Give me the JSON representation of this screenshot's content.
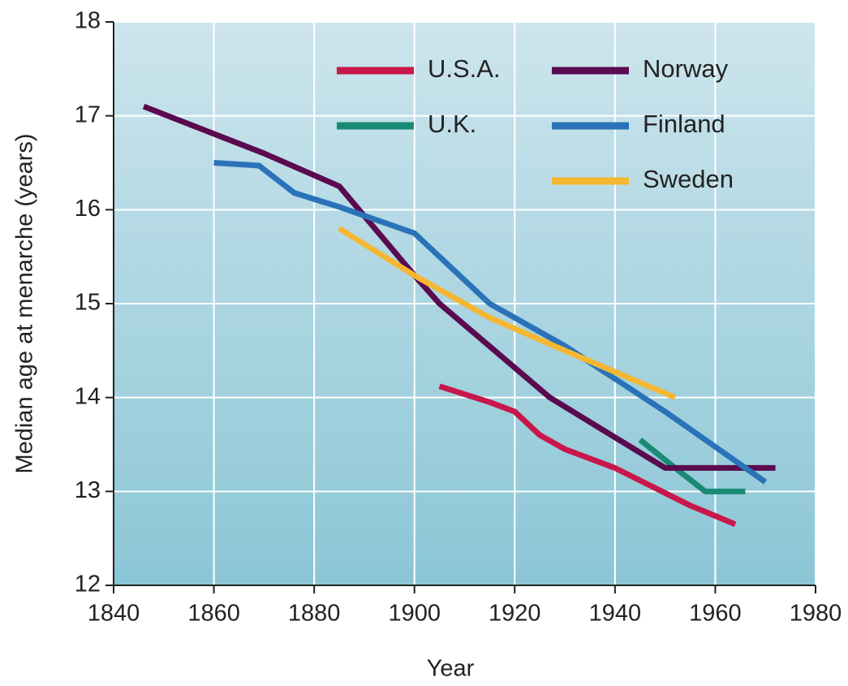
{
  "chart_data": {
    "type": "line",
    "xlabel": "Year",
    "ylabel": "Median age at menarche (years)",
    "xlim": [
      1840,
      1980
    ],
    "xticks": [
      1840,
      1860,
      1880,
      1900,
      1920,
      1940,
      1960,
      1980
    ],
    "ylim": [
      12,
      18
    ],
    "yticks": [
      12,
      13,
      14,
      15,
      16,
      17,
      18
    ],
    "grid": true,
    "legend": "upper right",
    "series": [
      {
        "name": "U.S.A.",
        "color": "#c8174a",
        "x": [
          1905,
          1915,
          1920,
          1925,
          1930,
          1940,
          1955,
          1964
        ],
        "values": [
          14.12,
          13.95,
          13.85,
          13.6,
          13.45,
          13.25,
          12.85,
          12.65
        ]
      },
      {
        "name": "U.K.",
        "color": "#1a8a74",
        "x": [
          1945,
          1952,
          1958,
          1966
        ],
        "values": [
          13.55,
          13.25,
          13.0,
          13.0
        ]
      },
      {
        "name": "Norway",
        "color": "#5a0a4f",
        "x": [
          1846,
          1870,
          1885,
          1900,
          1905,
          1927,
          1950,
          1972
        ],
        "values": [
          17.1,
          16.6,
          16.25,
          15.3,
          15.0,
          14.0,
          13.25,
          13.25
        ]
      },
      {
        "name": "Finland",
        "color": "#2a73b8",
        "x": [
          1860,
          1869,
          1876,
          1885,
          1900,
          1915,
          1930,
          1950,
          1970
        ],
        "values": [
          16.5,
          16.47,
          16.18,
          16.03,
          15.75,
          15.0,
          14.55,
          13.85,
          13.1
        ]
      },
      {
        "name": "Sweden",
        "color": "#f5b731",
        "x": [
          1885,
          1900,
          1915,
          1930,
          1952
        ],
        "values": [
          15.8,
          15.3,
          14.85,
          14.5,
          14.0
        ]
      }
    ]
  }
}
